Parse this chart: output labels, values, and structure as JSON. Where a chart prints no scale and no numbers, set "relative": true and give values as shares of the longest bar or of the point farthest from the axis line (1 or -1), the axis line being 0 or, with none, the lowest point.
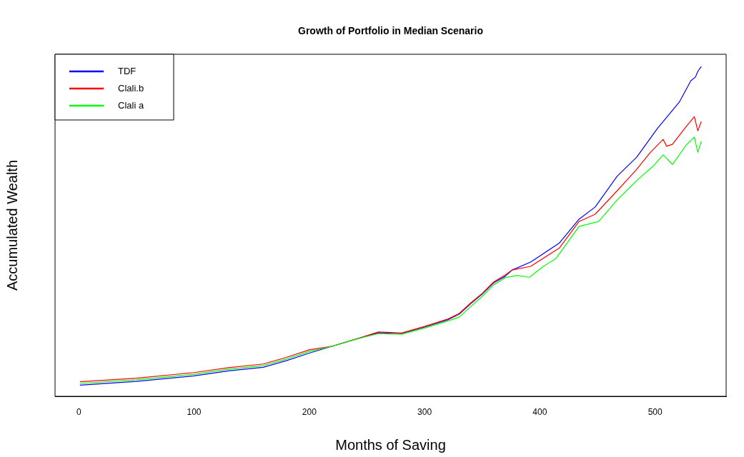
{
  "chart_data": {
    "type": "line",
    "title": "Growth of Portfolio in Median Scenario",
    "xlabel": "Months of Saving",
    "ylabel": "Accumulated Wealth",
    "relative": true,
    "xlim": [
      -20.6,
      561.6
    ],
    "xticks": [
      0,
      100,
      200,
      300,
      400,
      500
    ],
    "legend": "top left",
    "grid": false,
    "marker": "none",
    "line_style": "solid",
    "series": [
      {
        "name": "TDF",
        "color": "#0000ff",
        "x": [
          1,
          50,
          100,
          130,
          160,
          180,
          200,
          220,
          240,
          260,
          280,
          300,
          320,
          330,
          340,
          350,
          360,
          370,
          376,
          392,
          417,
          434,
          448,
          467,
          484,
          502,
          521,
          531,
          535,
          537,
          540
        ],
        "values": [
          0.034,
          0.045,
          0.062,
          0.077,
          0.088,
          0.108,
          0.131,
          0.152,
          0.173,
          0.193,
          0.19,
          0.21,
          0.232,
          0.249,
          0.281,
          0.31,
          0.344,
          0.364,
          0.383,
          0.407,
          0.465,
          0.537,
          0.574,
          0.667,
          0.725,
          0.812,
          0.892,
          0.957,
          0.968,
          0.985,
          1.0
        ]
      },
      {
        "name": "Clali.b",
        "color": "#ff0000",
        "x": [
          1,
          50,
          100,
          130,
          160,
          180,
          200,
          220,
          240,
          260,
          280,
          300,
          320,
          330,
          340,
          350,
          360,
          370,
          376,
          392,
          417,
          434,
          448,
          467,
          484,
          496,
          507,
          510,
          515,
          527,
          534,
          537,
          540
        ],
        "values": [
          0.044,
          0.055,
          0.072,
          0.087,
          0.098,
          0.118,
          0.141,
          0.152,
          0.173,
          0.195,
          0.192,
          0.212,
          0.234,
          0.251,
          0.283,
          0.312,
          0.347,
          0.368,
          0.383,
          0.394,
          0.45,
          0.53,
          0.552,
          0.623,
          0.688,
          0.74,
          0.779,
          0.758,
          0.764,
          0.818,
          0.848,
          0.805,
          0.833
        ]
      },
      {
        "name": "Clali a",
        "color": "#00ff00",
        "x": [
          1,
          50,
          100,
          130,
          160,
          180,
          200,
          220,
          240,
          260,
          280,
          300,
          320,
          330,
          340,
          350,
          360,
          370,
          380,
          391,
          403,
          414,
          434,
          451,
          467,
          484,
          498,
          507,
          515,
          527,
          534,
          537,
          540
        ],
        "values": [
          0.039,
          0.05,
          0.067,
          0.082,
          0.093,
          0.113,
          0.136,
          0.152,
          0.173,
          0.19,
          0.188,
          0.207,
          0.228,
          0.24,
          0.272,
          0.303,
          0.338,
          0.36,
          0.366,
          0.361,
          0.394,
          0.418,
          0.515,
          0.53,
          0.595,
          0.654,
          0.697,
          0.732,
          0.703,
          0.762,
          0.786,
          0.74,
          0.773
        ]
      }
    ]
  }
}
